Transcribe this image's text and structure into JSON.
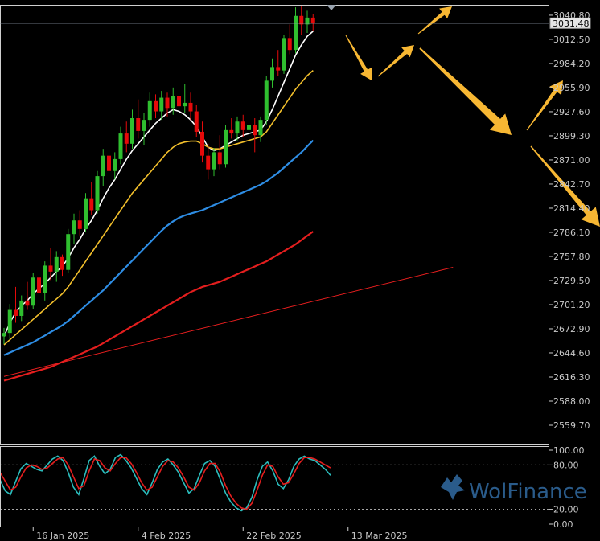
{
  "chart_data": [
    {
      "type": "candlestick",
      "title": "",
      "y_ticks": [
        "3040.80",
        "3012.50",
        "2984.20",
        "2955.90",
        "2927.60",
        "2899.30",
        "2871.00",
        "2842.70",
        "2814.40",
        "2786.10",
        "2757.80",
        "2729.50",
        "2701.20",
        "2672.90",
        "2644.60",
        "2616.30",
        "2588.00",
        "2559.70"
      ],
      "ylim": [
        2538,
        3053
      ],
      "x_labels": [
        "16 Jan 2025",
        "4 Feb 2025",
        "22 Feb 2025",
        "13 Mar 2025"
      ],
      "x_label_bar_index": [
        5,
        23,
        41,
        59
      ],
      "current_price": "3031.48",
      "current_price_value": 3031.48,
      "ohlc": [
        [
          2664,
          2674,
          2655,
          2668
        ],
        [
          2668,
          2702,
          2660,
          2695
        ],
        [
          2695,
          2722,
          2680,
          2688
        ],
        [
          2688,
          2712,
          2682,
          2706
        ],
        [
          2706,
          2728,
          2695,
          2700
        ],
        [
          2700,
          2738,
          2696,
          2733
        ],
        [
          2733,
          2758,
          2708,
          2715
        ],
        [
          2715,
          2752,
          2706,
          2747
        ],
        [
          2747,
          2768,
          2730,
          2740
        ],
        [
          2740,
          2764,
          2728,
          2757
        ],
        [
          2757,
          2760,
          2735,
          2742
        ],
        [
          2742,
          2790,
          2738,
          2784
        ],
        [
          2784,
          2808,
          2772,
          2800
        ],
        [
          2800,
          2812,
          2782,
          2790
        ],
        [
          2790,
          2832,
          2786,
          2826
        ],
        [
          2826,
          2845,
          2806,
          2812
        ],
        [
          2812,
          2858,
          2808,
          2852
        ],
        [
          2852,
          2884,
          2840,
          2876
        ],
        [
          2876,
          2890,
          2850,
          2858
        ],
        [
          2858,
          2880,
          2848,
          2872
        ],
        [
          2872,
          2910,
          2866,
          2902
        ],
        [
          2902,
          2916,
          2880,
          2890
        ],
        [
          2890,
          2930,
          2884,
          2920
        ],
        [
          2920,
          2942,
          2896,
          2905
        ],
        [
          2905,
          2926,
          2888,
          2918
        ],
        [
          2918,
          2950,
          2910,
          2940
        ],
        [
          2940,
          2948,
          2920,
          2928
        ],
        [
          2928,
          2952,
          2918,
          2944
        ],
        [
          2944,
          2950,
          2922,
          2932
        ],
        [
          2932,
          2956,
          2924,
          2946
        ],
        [
          2946,
          2958,
          2928,
          2934
        ],
        [
          2934,
          2960,
          2926,
          2938
        ],
        [
          2938,
          2950,
          2918,
          2928
        ],
        [
          2928,
          2936,
          2898,
          2904
        ],
        [
          2904,
          2916,
          2868,
          2876
        ],
        [
          2876,
          2890,
          2848,
          2860
        ],
        [
          2860,
          2885,
          2852,
          2880
        ],
        [
          2880,
          2900,
          2860,
          2866
        ],
        [
          2866,
          2912,
          2862,
          2906
        ],
        [
          2906,
          2920,
          2896,
          2902
        ],
        [
          2902,
          2922,
          2894,
          2916
        ],
        [
          2916,
          2924,
          2898,
          2906
        ],
        [
          2906,
          2916,
          2892,
          2912
        ],
        [
          2912,
          2920,
          2880,
          2900
        ],
        [
          2900,
          2922,
          2892,
          2918
        ],
        [
          2918,
          2970,
          2912,
          2964
        ],
        [
          2964,
          2990,
          2956,
          2980
        ],
        [
          2980,
          3000,
          2970,
          2976
        ],
        [
          2976,
          3018,
          2972,
          3014
        ],
        [
          3014,
          3030,
          2995,
          3000
        ],
        [
          3000,
          3050,
          2996,
          3040
        ],
        [
          3040,
          3052,
          3018,
          3030
        ],
        [
          3030,
          3046,
          3020,
          3038
        ],
        [
          3038,
          3042,
          3022,
          3031
        ]
      ],
      "series": [
        {
          "color": "#ffffff",
          "values": [
            2664,
            2680,
            2692,
            2700,
            2706,
            2714,
            2720,
            2726,
            2733,
            2740,
            2746,
            2756,
            2768,
            2778,
            2790,
            2800,
            2812,
            2826,
            2838,
            2848,
            2860,
            2872,
            2882,
            2890,
            2898,
            2906,
            2914,
            2920,
            2926,
            2930,
            2928,
            2924,
            2918,
            2910,
            2898,
            2886,
            2882,
            2884,
            2888,
            2892,
            2896,
            2900,
            2902,
            2904,
            2906,
            2916,
            2930,
            2946,
            2962,
            2978,
            2994,
            3006,
            3016,
            3022
          ]
        },
        {
          "color": "#f3c02c",
          "values": [
            2654,
            2660,
            2666,
            2672,
            2678,
            2684,
            2690,
            2696,
            2702,
            2708,
            2714,
            2722,
            2732,
            2742,
            2752,
            2762,
            2772,
            2782,
            2792,
            2802,
            2812,
            2822,
            2832,
            2840,
            2848,
            2856,
            2864,
            2872,
            2880,
            2886,
            2890,
            2892,
            2893,
            2893,
            2890,
            2886,
            2884,
            2884,
            2886,
            2888,
            2890,
            2892,
            2894,
            2896,
            2898,
            2904,
            2914,
            2924,
            2934,
            2944,
            2954,
            2962,
            2970,
            2976
          ]
        },
        {
          "color": "#2e8de4",
          "values": [
            2642,
            2645,
            2648,
            2651,
            2654,
            2657,
            2661,
            2665,
            2669,
            2673,
            2677,
            2682,
            2688,
            2694,
            2700,
            2706,
            2712,
            2718,
            2725,
            2732,
            2739,
            2746,
            2753,
            2760,
            2767,
            2774,
            2781,
            2788,
            2794,
            2799,
            2803,
            2806,
            2808,
            2810,
            2812,
            2815,
            2818,
            2821,
            2824,
            2827,
            2830,
            2833,
            2836,
            2839,
            2842,
            2846,
            2851,
            2856,
            2862,
            2868,
            2874,
            2880,
            2887,
            2894
          ]
        },
        {
          "color": "#e41e1e",
          "values": [
            2612,
            2614,
            2616,
            2618,
            2620,
            2622,
            2624,
            2626,
            2628,
            2631,
            2634,
            2637,
            2640,
            2643,
            2646,
            2649,
            2652,
            2656,
            2660,
            2664,
            2668,
            2672,
            2676,
            2680,
            2684,
            2688,
            2692,
            2696,
            2700,
            2704,
            2708,
            2712,
            2716,
            2719,
            2722,
            2724,
            2726,
            2728,
            2731,
            2734,
            2737,
            2740,
            2743,
            2746,
            2749,
            2752,
            2756,
            2760,
            2764,
            2768,
            2772,
            2777,
            2782,
            2787
          ]
        }
      ],
      "trendline": {
        "color": "#e41e1e",
        "x0_bar": 0,
        "y0": 2617,
        "x1_bar": 77,
        "y1": 2745
      }
    },
    {
      "type": "line",
      "title": "",
      "y_ticks": [
        "100.00",
        "80.00",
        "20.00",
        "0.00"
      ],
      "ylim": [
        0,
        100
      ],
      "levels": [
        80,
        20
      ],
      "series": [
        {
          "color": "#2bbdbd",
          "values": [
            60,
            45,
            40,
            58,
            75,
            82,
            78,
            74,
            72,
            80,
            88,
            92,
            86,
            70,
            50,
            40,
            62,
            86,
            92,
            78,
            68,
            74,
            90,
            94,
            86,
            76,
            62,
            48,
            40,
            56,
            74,
            84,
            88,
            80,
            70,
            56,
            42,
            48,
            66,
            82,
            86,
            78,
            60,
            42,
            30,
            22,
            18,
            22,
            36,
            60,
            78,
            84,
            72,
            54,
            48,
            60,
            78,
            88,
            92,
            88,
            86,
            80,
            74,
            66
          ]
        },
        {
          "color": "#e41e1e",
          "values": [
            70,
            58,
            46,
            50,
            64,
            76,
            80,
            78,
            74,
            76,
            82,
            88,
            90,
            80,
            64,
            48,
            52,
            72,
            88,
            86,
            76,
            72,
            82,
            90,
            90,
            82,
            70,
            56,
            46,
            50,
            64,
            78,
            86,
            84,
            76,
            64,
            50,
            46,
            56,
            72,
            82,
            82,
            70,
            52,
            38,
            28,
            22,
            20,
            28,
            46,
            66,
            80,
            78,
            64,
            54,
            56,
            68,
            82,
            90,
            90,
            88,
            84,
            80,
            76
          ]
        }
      ]
    }
  ],
  "forecast_arrows": {
    "color": "#f7b733"
  },
  "logo": {
    "brand": "WolFinance"
  }
}
